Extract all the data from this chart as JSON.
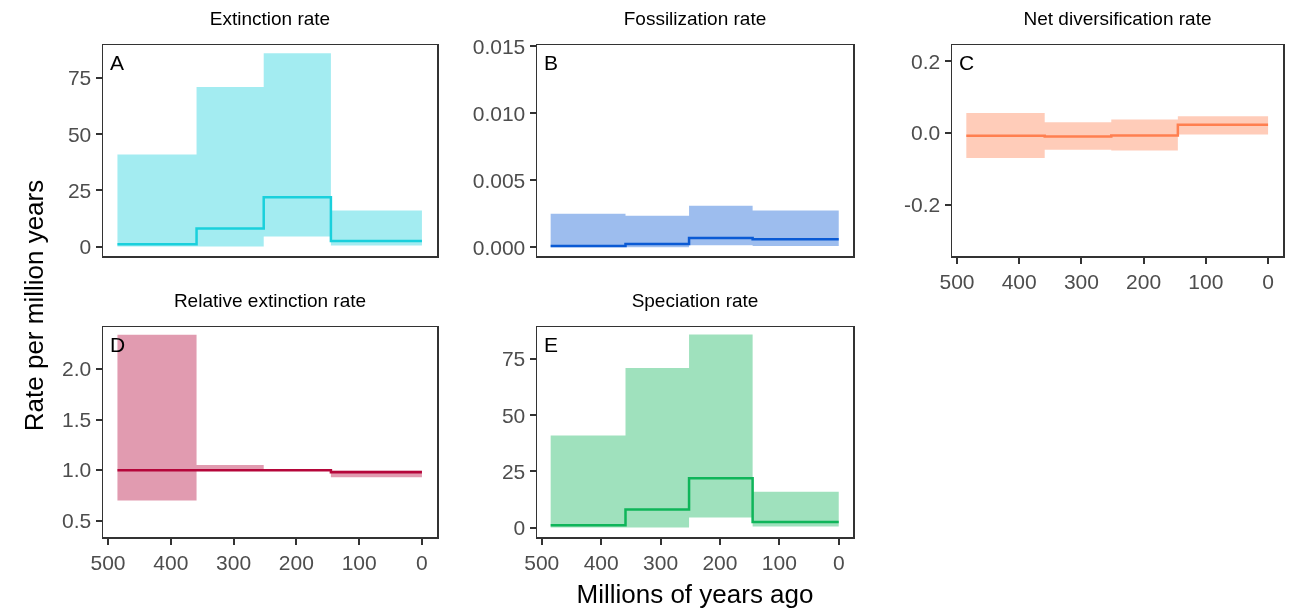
{
  "chart_data": [
    {
      "type": "step",
      "title": "Extinction rate",
      "annotations": [
        "A"
      ],
      "x": [
        485,
        359,
        252,
        145,
        0
      ],
      "xlim": [
        508,
        -24
      ],
      "xticks": [
        500,
        400,
        300,
        200,
        100,
        0
      ],
      "ylim": [
        -4.2,
        89.7
      ],
      "yticks": [
        0,
        25,
        50,
        75
      ],
      "tick_labels": "y",
      "grid": false,
      "series": [
        {
          "color": "#1ad0dc",
          "values": [
            1,
            8,
            22,
            2.5,
            2.5
          ],
          "lower": [
            0,
            0,
            4.5,
            0.5,
            0.5
          ],
          "upper": [
            41,
            71,
            86,
            16,
            16
          ]
        }
      ]
    },
    {
      "type": "step",
      "title": "Fossilization rate",
      "annotations": [
        "B"
      ],
      "x": [
        485,
        359,
        252,
        145,
        0
      ],
      "xlim": [
        508,
        -24
      ],
      "xticks": [
        500,
        400,
        300,
        200,
        100,
        0
      ],
      "ylim": [
        -0.00065,
        0.0151
      ],
      "yticks": [
        {
          "value": 0,
          "label": "0.000"
        },
        {
          "value": 0.005,
          "label": "0.005"
        },
        {
          "value": 0.01,
          "label": "0.010"
        },
        {
          "value": 0.015,
          "label": "0.015"
        }
      ],
      "tick_labels": "y",
      "grid": false,
      "series": [
        {
          "color": "#0a5ad4",
          "values": [
            0.0001,
            0.00025,
            0.0007,
            0.0006,
            0.0006
          ],
          "lower": [
            0,
            0,
            0.00015,
            0.0001,
            0.0001
          ],
          "upper": [
            0.0025,
            0.00235,
            0.0031,
            0.00275,
            0.00275
          ]
        }
      ]
    },
    {
      "type": "step",
      "title": "Net diversification rate",
      "annotations": [
        "C"
      ],
      "x": [
        485,
        359,
        252,
        145,
        0
      ],
      "xlim": [
        508,
        -24
      ],
      "xticks": [
        500,
        400,
        300,
        200,
        100,
        0
      ],
      "ylim": [
        -0.344,
        0.246
      ],
      "yticks": [
        {
          "value": -0.2,
          "label": "-0.2"
        },
        {
          "value": 0,
          "label": "0.0"
        },
        {
          "value": 0.2,
          "label": "0.2"
        }
      ],
      "grid": false,
      "series": [
        {
          "color": "#ff7f50",
          "values": [
            -0.008,
            -0.01,
            -0.007,
            0.023,
            0.023
          ],
          "lower": [
            -0.07,
            -0.047,
            -0.049,
            -0.004,
            -0.004
          ],
          "upper": [
            0.056,
            0.03,
            0.038,
            0.047,
            0.047
          ]
        }
      ]
    },
    {
      "type": "step",
      "title": "Relative extinction rate",
      "annotations": [
        "D"
      ],
      "ylabel": "Rate per million years",
      "x": [
        485,
        359,
        252,
        145,
        0
      ],
      "xlim": [
        508,
        -24
      ],
      "xticks": [
        500,
        400,
        300,
        200,
        100,
        0
      ],
      "ylim": [
        0.338,
        2.417
      ],
      "yticks": [
        {
          "value": 0.5,
          "label": "0.5"
        },
        {
          "value": 1,
          "label": "1.0"
        },
        {
          "value": 1.5,
          "label": "1.5"
        },
        {
          "value": 2,
          "label": "2.0"
        }
      ],
      "grid": false,
      "series": [
        {
          "color": "#b5063a",
          "values": [
            1,
            1,
            1,
            0.98,
            0.98
          ],
          "lower": [
            0.7,
            1,
            1,
            0.93,
            0.93
          ],
          "upper": [
            2.34,
            1.05,
            1.01,
            1,
            1
          ]
        }
      ]
    },
    {
      "type": "step",
      "title": "Speciation rate",
      "annotations": [
        "E"
      ],
      "xlabel": "Millions of years ago",
      "x": [
        485,
        359,
        252,
        145,
        0
      ],
      "xlim": [
        508,
        -24
      ],
      "xticks": [
        500,
        400,
        300,
        200,
        100,
        0
      ],
      "ylim": [
        -4.2,
        89.3
      ],
      "yticks": [
        0,
        25,
        50,
        75
      ],
      "grid": false,
      "series": [
        {
          "color": "#0fb55a",
          "values": [
            1,
            8,
            22,
            2.5,
            2.5
          ],
          "lower": [
            0,
            0,
            4.5,
            0.5,
            0.5
          ],
          "upper": [
            41,
            71,
            86,
            16,
            16
          ]
        }
      ]
    }
  ]
}
